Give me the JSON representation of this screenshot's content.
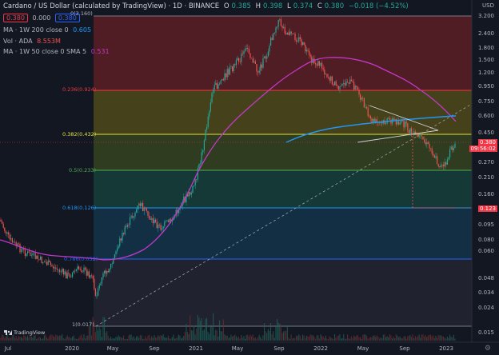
{
  "header": {
    "symbol": "Cardano / US Dollar (calculated by TradingView) · 1D · BINANCE",
    "o_label": "O",
    "o": "0.385",
    "h_label": "H",
    "h": "0.398",
    "l_label": "L",
    "l": "0.374",
    "c_label": "C",
    "c": "0.380",
    "change": "−0.018 (−4.52%)"
  },
  "legend": {
    "bid": "0.380",
    "spread": "0.000",
    "ask": "0.380",
    "ma1_label": "MA · 1W 200 close 0",
    "ma1_value": "0.605",
    "vol_label": "Vol · ADA",
    "vol_value": "8.553M",
    "ma2_label": "MA · 1W 50 close 0 SMA 5",
    "ma2_value": "0.531"
  },
  "axis": {
    "currency": "USD",
    "yticks": [
      "3.200",
      "2.400",
      "1.800",
      "1.500",
      "1.200",
      "0.950",
      "0.750",
      "0.600",
      "0.450",
      "0.270",
      "0.210",
      "0.160",
      "0.095",
      "0.080",
      "0.060",
      "0.048",
      "0.034",
      "0.024",
      "0.015"
    ],
    "xticks": [
      "Jul",
      "2020",
      "May",
      "Sep",
      "2021",
      "May",
      "Sep",
      "2022",
      "May",
      "Sep",
      "2023"
    ],
    "last_price": "0.380",
    "countdown": "09:56:02",
    "target_price": "0.123"
  },
  "fib": {
    "levels": [
      {
        "label": "0(3.160)",
        "color": "#787b86"
      },
      {
        "label": "0.236(0.924)",
        "color": "#f23645"
      },
      {
        "label": "0.382(0.432)",
        "color": "#e0e03a"
      },
      {
        "label": "0.5(0.233)",
        "color": "#4caf50"
      },
      {
        "label": "0.618(0.126)",
        "color": "#2196f3"
      },
      {
        "label": "0.786(0.052)",
        "color": "#2962ff"
      },
      {
        "label": "1(0.017)",
        "color": "#787b86"
      }
    ]
  },
  "brand": {
    "logo_text": "TradingView"
  },
  "colors": {
    "up": "#26a69a",
    "down": "#ef5350",
    "ma200": "#2196f3",
    "ma50": "#c238c8",
    "background": "#131722"
  }
}
